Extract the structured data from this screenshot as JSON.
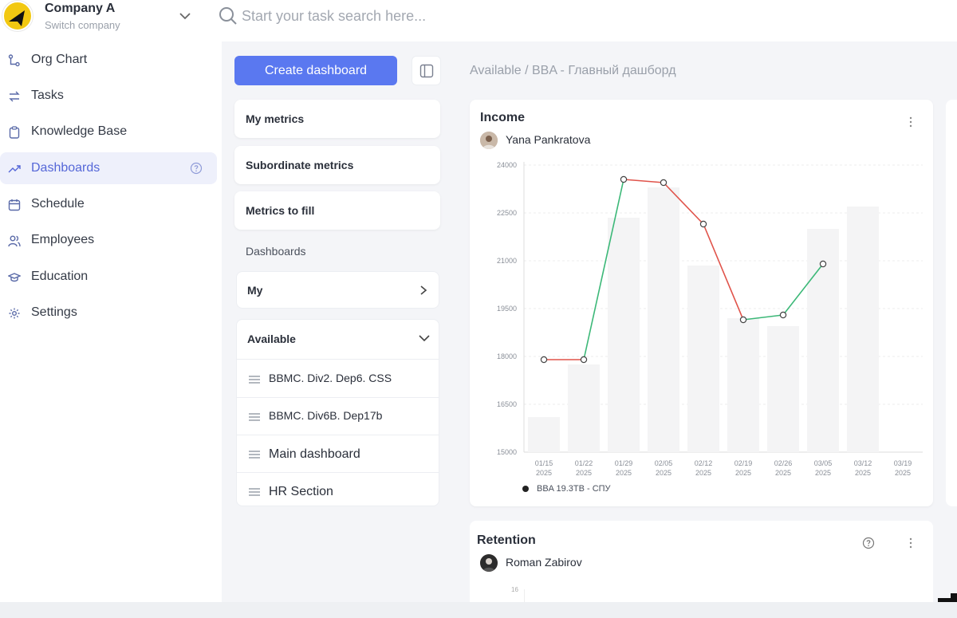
{
  "company": {
    "name": "Company A",
    "switch_label": "Switch company"
  },
  "search": {
    "placeholder": "Start your task search here..."
  },
  "sidebar": {
    "items": [
      {
        "label": "Org Chart",
        "icon": "org-chart-icon"
      },
      {
        "label": "Tasks",
        "icon": "tasks-icon"
      },
      {
        "label": "Knowledge Base",
        "icon": "clipboard-icon"
      },
      {
        "label": "Dashboards",
        "icon": "trend-icon",
        "active": true
      },
      {
        "label": "Schedule",
        "icon": "calendar-icon"
      },
      {
        "label": "Employees",
        "icon": "users-icon"
      },
      {
        "label": "Education",
        "icon": "graduation-cap-icon"
      },
      {
        "label": "Settings",
        "icon": "gear-icon"
      }
    ]
  },
  "panel": {
    "create_label": "Create dashboard",
    "my_metrics": "My metrics",
    "subordinate_metrics": "Subordinate metrics",
    "metrics_to_fill": "Metrics to fill",
    "dashboards_title": "Dashboards",
    "my_label": "My",
    "available_label": "Available",
    "available_items": [
      "BBMC. Div2. Dep6. CSS",
      "BBMC. Div6B. Dep17b",
      "Main dashboard",
      "HR Section"
    ]
  },
  "main": {
    "breadcrumb": "Available / BBA - Главный дашборд",
    "income_card": {
      "title": "Income",
      "owner": "Yana Pankratova"
    },
    "retention_card": {
      "title": "Retention",
      "owner": "Roman Zabirov",
      "axis_tick": "16"
    }
  },
  "colors": {
    "accent": "#5a78f0",
    "up": "#3cb878",
    "down": "#e0534a",
    "bar": "#f4f4f5"
  },
  "chart_data": {
    "type": "line",
    "title": "Income",
    "categories": [
      "01/15 2025",
      "01/22 2025",
      "01/29 2025",
      "02/05 2025",
      "02/12 2025",
      "02/19 2025",
      "02/26 2025",
      "03/05 2025",
      "03/12 2025",
      "03/19 2025"
    ],
    "x_tick_labels": [
      [
        "01/15",
        "2025"
      ],
      [
        "01/22",
        "2025"
      ],
      [
        "01/29",
        "2025"
      ],
      [
        "02/05",
        "2025"
      ],
      [
        "02/12",
        "2025"
      ],
      [
        "02/19",
        "2025"
      ],
      [
        "02/26",
        "2025"
      ],
      [
        "03/05",
        "2025"
      ],
      [
        "03/12",
        "2025"
      ],
      [
        "03/19",
        "2025"
      ]
    ],
    "y_ticks": [
      15000,
      16500,
      18000,
      19500,
      21000,
      22500,
      24000
    ],
    "y_tick_labels": [
      "15000",
      "16500",
      "18000",
      "19500",
      "21000",
      "22500",
      "24000"
    ],
    "ylim": [
      15000,
      24000
    ],
    "series": [
      {
        "name": "BBA 19.3TB - СПУ",
        "type": "line",
        "values": [
          17900,
          17900,
          23550,
          23450,
          22150,
          19150,
          19300,
          20900,
          null,
          null
        ]
      },
      {
        "type": "bar",
        "values": [
          16100,
          17750,
          22350,
          23300,
          20850,
          19200,
          18950,
          22000,
          22700,
          null
        ]
      }
    ],
    "legend_position": "bottom-left",
    "grid": true
  }
}
